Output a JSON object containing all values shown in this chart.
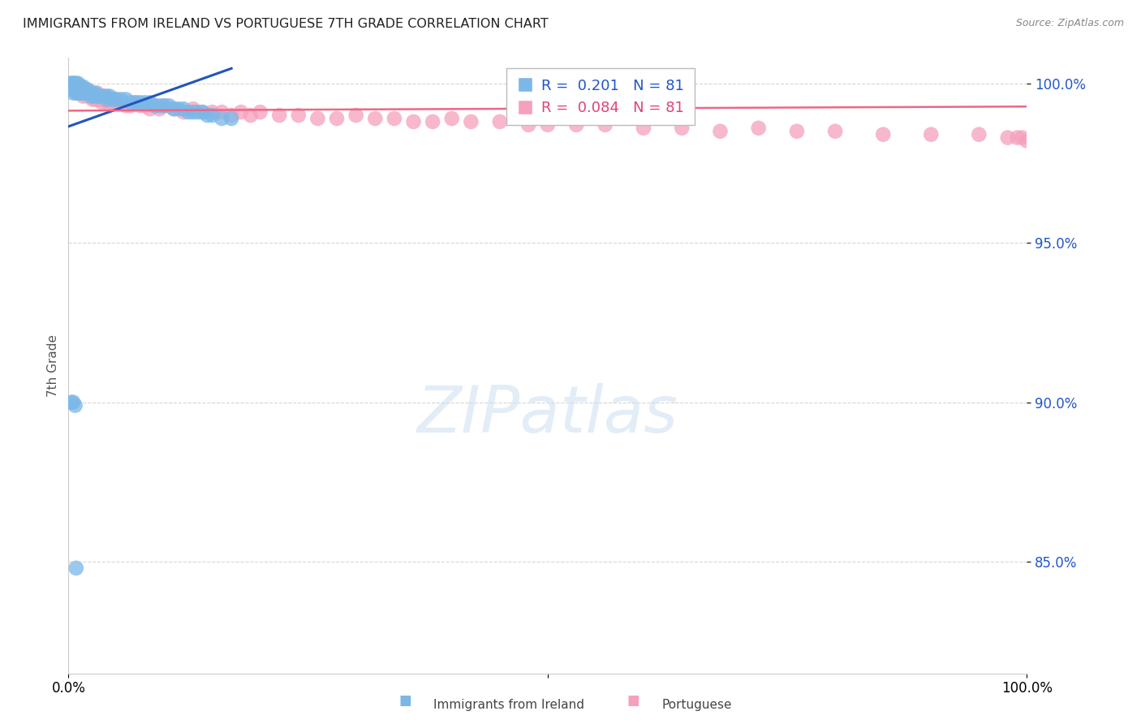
{
  "title": "IMMIGRANTS FROM IRELAND VS PORTUGUESE 7TH GRADE CORRELATION CHART",
  "source": "Source: ZipAtlas.com",
  "ylabel": "7th Grade",
  "xlim": [
    0.0,
    1.0
  ],
  "ylim": [
    0.815,
    1.008
  ],
  "yticks": [
    0.85,
    0.9,
    0.95,
    1.0
  ],
  "ytick_labels": [
    "85.0%",
    "90.0%",
    "95.0%",
    "100.0%"
  ],
  "legend_label1": "Immigrants from Ireland",
  "legend_label2": "Portuguese",
  "R1": 0.201,
  "N1": 81,
  "R2": 0.084,
  "N2": 81,
  "color_blue": "#7ab8e8",
  "color_pink": "#f5a0bc",
  "color_blue_line": "#2255bb",
  "color_pink_line": "#ee6688",
  "color_blue_text": "#2255cc",
  "color_pink_text": "#dd4477",
  "blue_x": [
    0.002,
    0.003,
    0.003,
    0.004,
    0.004,
    0.005,
    0.005,
    0.005,
    0.005,
    0.006,
    0.006,
    0.006,
    0.007,
    0.007,
    0.007,
    0.008,
    0.008,
    0.008,
    0.009,
    0.009,
    0.009,
    0.01,
    0.01,
    0.01,
    0.011,
    0.011,
    0.012,
    0.012,
    0.013,
    0.013,
    0.014,
    0.014,
    0.015,
    0.015,
    0.016,
    0.017,
    0.018,
    0.019,
    0.02,
    0.02,
    0.021,
    0.022,
    0.023,
    0.024,
    0.025,
    0.026,
    0.028,
    0.03,
    0.032,
    0.035,
    0.038,
    0.04,
    0.043,
    0.046,
    0.05,
    0.055,
    0.06,
    0.065,
    0.07,
    0.075,
    0.08,
    0.085,
    0.09,
    0.095,
    0.1,
    0.105,
    0.11,
    0.115,
    0.12,
    0.125,
    0.13,
    0.135,
    0.14,
    0.145,
    0.15,
    0.16,
    0.17,
    0.003,
    0.005,
    0.007,
    0.008
  ],
  "blue_y": [
    1.0,
    1.0,
    0.999,
    1.0,
    0.999,
    1.0,
    0.999,
    0.998,
    0.997,
    1.0,
    0.999,
    0.998,
    1.0,
    0.999,
    0.998,
    1.0,
    0.999,
    0.997,
    0.999,
    0.998,
    0.997,
    1.0,
    0.999,
    0.998,
    0.999,
    0.998,
    0.999,
    0.998,
    0.999,
    0.997,
    0.998,
    0.997,
    0.999,
    0.997,
    0.998,
    0.997,
    0.998,
    0.997,
    0.998,
    0.997,
    0.997,
    0.997,
    0.997,
    0.996,
    0.997,
    0.996,
    0.997,
    0.996,
    0.996,
    0.996,
    0.996,
    0.995,
    0.996,
    0.995,
    0.995,
    0.995,
    0.995,
    0.994,
    0.994,
    0.994,
    0.994,
    0.994,
    0.993,
    0.993,
    0.993,
    0.993,
    0.992,
    0.992,
    0.992,
    0.991,
    0.991,
    0.991,
    0.991,
    0.99,
    0.99,
    0.989,
    0.989,
    0.9,
    0.9,
    0.899,
    0.848
  ],
  "pink_x": [
    0.003,
    0.005,
    0.007,
    0.008,
    0.01,
    0.01,
    0.012,
    0.013,
    0.015,
    0.015,
    0.017,
    0.018,
    0.02,
    0.02,
    0.022,
    0.023,
    0.025,
    0.025,
    0.027,
    0.028,
    0.03,
    0.03,
    0.032,
    0.035,
    0.035,
    0.038,
    0.04,
    0.04,
    0.043,
    0.045,
    0.048,
    0.05,
    0.055,
    0.06,
    0.065,
    0.07,
    0.075,
    0.08,
    0.085,
    0.09,
    0.095,
    0.1,
    0.11,
    0.12,
    0.13,
    0.14,
    0.15,
    0.16,
    0.17,
    0.18,
    0.19,
    0.2,
    0.22,
    0.24,
    0.26,
    0.28,
    0.3,
    0.32,
    0.34,
    0.36,
    0.38,
    0.4,
    0.42,
    0.45,
    0.48,
    0.5,
    0.53,
    0.56,
    0.6,
    0.64,
    0.68,
    0.72,
    0.76,
    0.8,
    0.85,
    0.9,
    0.95,
    0.98,
    0.99,
    0.995,
    1.0
  ],
  "pink_y": [
    0.999,
    0.998,
    0.999,
    0.998,
    0.999,
    0.997,
    0.998,
    0.997,
    0.998,
    0.996,
    0.997,
    0.997,
    0.998,
    0.996,
    0.997,
    0.996,
    0.997,
    0.995,
    0.996,
    0.995,
    0.997,
    0.995,
    0.996,
    0.995,
    0.994,
    0.995,
    0.996,
    0.994,
    0.995,
    0.994,
    0.994,
    0.995,
    0.994,
    0.993,
    0.993,
    0.994,
    0.993,
    0.993,
    0.992,
    0.993,
    0.992,
    0.993,
    0.992,
    0.991,
    0.992,
    0.991,
    0.991,
    0.991,
    0.99,
    0.991,
    0.99,
    0.991,
    0.99,
    0.99,
    0.989,
    0.989,
    0.99,
    0.989,
    0.989,
    0.988,
    0.988,
    0.989,
    0.988,
    0.988,
    0.987,
    0.987,
    0.987,
    0.987,
    0.986,
    0.986,
    0.985,
    0.986,
    0.985,
    0.985,
    0.984,
    0.984,
    0.984,
    0.983,
    0.983,
    0.983,
    0.982
  ]
}
